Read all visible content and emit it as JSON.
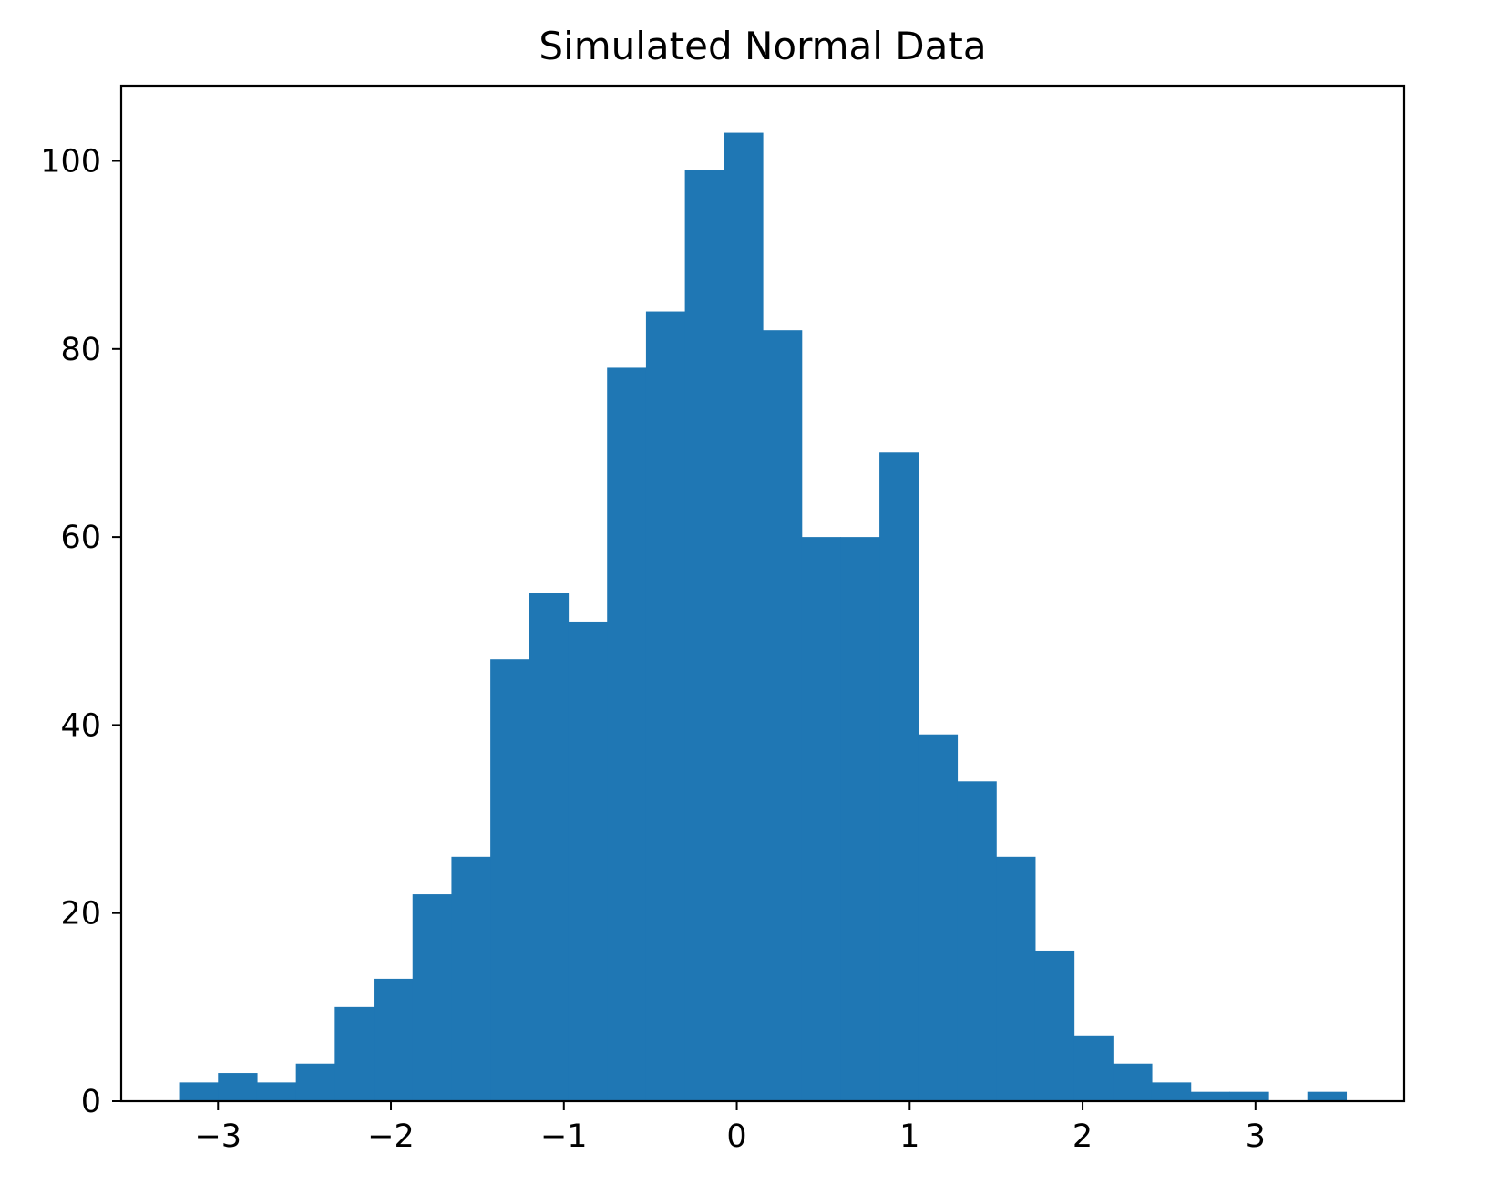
{
  "chart_data": {
    "type": "bar",
    "subtype": "histogram",
    "title": "Simulated Normal Data",
    "xlabel": "",
    "ylabel": "",
    "bin_edges": [
      -3.225,
      -3.0,
      -2.775,
      -2.55,
      -2.325,
      -2.1,
      -1.875,
      -1.65,
      -1.425,
      -1.2,
      -0.975,
      -0.75,
      -0.525,
      -0.3,
      -0.075,
      0.15,
      0.375,
      0.6,
      0.825,
      1.05,
      1.275,
      1.5,
      1.725,
      1.95,
      2.175,
      2.4,
      2.625,
      2.85,
      3.075,
      3.3,
      3.525
    ],
    "values": [
      2,
      3,
      2,
      4,
      10,
      13,
      22,
      26,
      47,
      54,
      51,
      78,
      84,
      99,
      103,
      82,
      60,
      60,
      69,
      39,
      34,
      26,
      16,
      7,
      4,
      2,
      1,
      1,
      0,
      1
    ],
    "bar_color": "#1f77b4",
    "xlim": [
      -3.56,
      3.86
    ],
    "ylim": [
      0,
      108
    ],
    "xticks": [
      -3,
      -2,
      -1,
      0,
      1,
      2,
      3
    ],
    "xtick_labels": [
      "−3",
      "−2",
      "−1",
      "0",
      "1",
      "2",
      "3"
    ],
    "yticks": [
      0,
      20,
      40,
      60,
      80,
      100
    ],
    "ytick_labels": [
      "0",
      "20",
      "40",
      "60",
      "80",
      "100"
    ],
    "grid": false,
    "legend": "none"
  }
}
